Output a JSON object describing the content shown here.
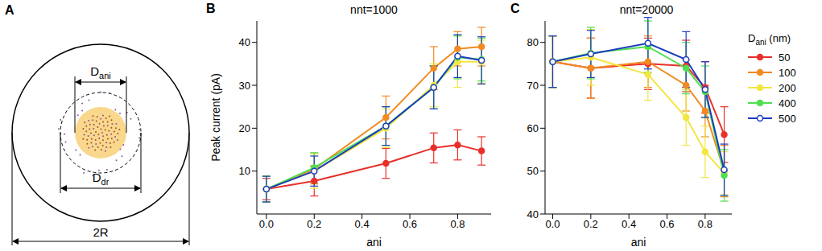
{
  "diagram": {
    "panel": "A",
    "inner_label": {
      "base": "D",
      "sub": "ani"
    },
    "middle_label": {
      "base": "D",
      "sub": "dr"
    },
    "outer_label": "2R"
  },
  "chart_data": [
    {
      "type": "line",
      "panel": "B",
      "title": "nnt=1000",
      "x_label": "ani",
      "y_label": "Peak current (pA)",
      "x": [
        0,
        0.2,
        0.5,
        0.7,
        0.8,
        0.9
      ],
      "xlim": [
        -0.04,
        0.94
      ],
      "xticks": [
        {
          "value": 0,
          "label": "0.0"
        },
        {
          "value": 0.2,
          "label": "0.2"
        },
        {
          "value": 0.4,
          "label": "0.4"
        },
        {
          "value": 0.6,
          "label": "0.6"
        },
        {
          "value": 0.8,
          "label": "0.8"
        }
      ],
      "ylim": [
        0,
        45
      ],
      "yticks": [
        10,
        20,
        30,
        40
      ],
      "series": [
        {
          "name": "50",
          "color": "#e8302a",
          "marker": "circle",
          "values": [
            5.8,
            7.7,
            11.8,
            15.4,
            16.1,
            14.7
          ],
          "errors": [
            2.5,
            3.5,
            3.5,
            3.5,
            3.5,
            3.3
          ]
        },
        {
          "name": "100",
          "color": "#f28a22",
          "marker": "circle",
          "values": [
            5.8,
            10.5,
            22.5,
            34,
            38.5,
            39
          ],
          "errors": [
            3,
            3.5,
            5,
            5,
            4,
            4.5
          ]
        },
        {
          "name": "200",
          "color": "#f2e640",
          "marker": "circle",
          "values": [
            5.8,
            10,
            20,
            30,
            35.5,
            35.5
          ],
          "errors": [
            3,
            4,
            4.5,
            5,
            6,
            5
          ]
        },
        {
          "name": "400",
          "color": "#4fe04f",
          "marker": "circle",
          "values": [
            5.8,
            10.8,
            20.5,
            29.5,
            36.5,
            36
          ],
          "errors": [
            3,
            3.5,
            4.5,
            5,
            5,
            5
          ]
        },
        {
          "name": "500",
          "color": "#1c3cbf",
          "marker": "open_circle",
          "values": [
            5.8,
            10,
            20.5,
            29.5,
            36.8,
            35.8
          ],
          "errors": [
            3,
            3.5,
            4.5,
            5,
            5,
            5.5
          ]
        }
      ]
    },
    {
      "type": "line",
      "panel": "C",
      "title": "nnt=20000",
      "x_label": "ani",
      "legend": "right",
      "legend_title": {
        "base": "D",
        "sub": "ani",
        "rest": " (nm)"
      },
      "x": [
        0,
        0.2,
        0.5,
        0.7,
        0.8,
        0.9
      ],
      "xlim": [
        -0.04,
        0.94
      ],
      "xticks": [
        {
          "value": 0,
          "label": "0.0"
        },
        {
          "value": 0.2,
          "label": "0.2"
        },
        {
          "value": 0.4,
          "label": "0.4"
        },
        {
          "value": 0.6,
          "label": "0.6"
        },
        {
          "value": 0.8,
          "label": "0.8"
        }
      ],
      "ylim": [
        40,
        85
      ],
      "yticks": [
        40,
        50,
        60,
        70,
        80
      ],
      "series": [
        {
          "name": "50",
          "color": "#e8302a",
          "marker": "circle",
          "values": [
            75.5,
            74,
            75,
            74.5,
            69.5,
            58.5
          ],
          "errors": [
            6,
            7,
            6,
            6,
            6,
            6.5
          ]
        },
        {
          "name": "100",
          "color": "#f28a22",
          "marker": "circle",
          "values": [
            75.5,
            74,
            75.5,
            70,
            64,
            50
          ],
          "errors": [
            6,
            7,
            6,
            6,
            6,
            6
          ]
        },
        {
          "name": "200",
          "color": "#f2e640",
          "marker": "circle",
          "values": [
            75.5,
            76.5,
            72.5,
            62.5,
            54.5,
            49.5
          ],
          "errors": [
            6,
            6.5,
            6,
            6.5,
            6,
            5
          ]
        },
        {
          "name": "400",
          "color": "#4fe04f",
          "marker": "circle",
          "values": [
            75.5,
            77.5,
            79,
            74,
            68.5,
            49
          ],
          "errors": [
            6,
            6,
            6,
            6,
            6,
            6
          ]
        },
        {
          "name": "500",
          "color": "#1c3cbf",
          "marker": "open_circle",
          "values": [
            75.5,
            77.3,
            79.8,
            76,
            69,
            50.3
          ],
          "errors": [
            6,
            5.5,
            6,
            6.5,
            6.5,
            6
          ]
        }
      ]
    }
  ]
}
